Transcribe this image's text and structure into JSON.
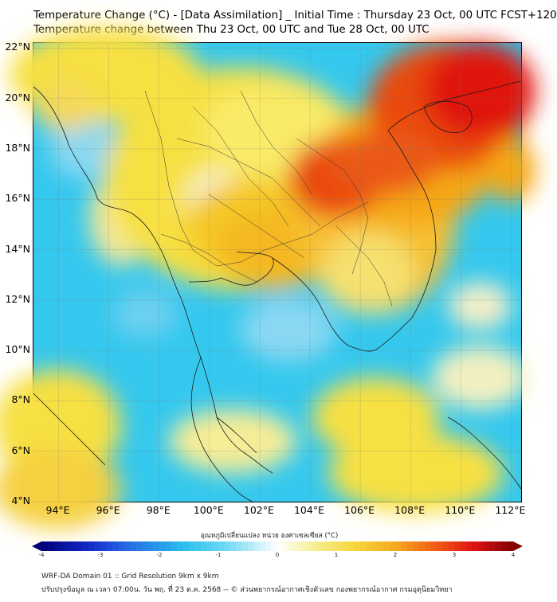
{
  "header": {
    "title_line1": "Temperature Change (°C) - [Data Assimilation] _ Initial Time : Thursday 23 Oct, 00 UTC FCST+120",
    "title_line2": "Temperature change between Thu 23 Oct, 00 UTC and Tue 28 Oct, 00 UTC"
  },
  "map": {
    "lat_labels": [
      "22°N",
      "20°N",
      "18°N",
      "16°N",
      "14°N",
      "12°N",
      "10°N",
      "8°N",
      "6°N",
      "4°N"
    ],
    "lon_labels": [
      "94°E",
      "96°E",
      "98°E",
      "100°E",
      "102°E",
      "104°E",
      "106°E",
      "108°E",
      "110°E",
      "112°E"
    ],
    "lat_range": [
      4,
      22.2
    ],
    "lon_range": [
      93,
      112.4
    ],
    "background_color": "#35c8ee",
    "field_colors": {
      "cool": "#35c8ee",
      "light_cool": "#a8e6f5",
      "neutral": "#f4f8dc",
      "warm": "#f7e042",
      "orange": "#f5a818",
      "hot": "#ea4a10",
      "very_hot": "#e0180c"
    }
  },
  "colorbar": {
    "title": "อุณหภูมิเปลี่ยนแปลง หน่วย องศาเซลเซียส (°C)",
    "ticks": [
      "-4",
      "-3",
      "-2",
      "-1",
      "0",
      "1",
      "2",
      "3",
      "4"
    ],
    "min": -4,
    "max": 4
  },
  "footer": {
    "line1": "WRF-DA Domain 01 :: Grid Resolution 9km x 9km",
    "line2": "ปรับปรุงข้อมูล ณ เวลา 07:00น. วัน พฤ. ที่ 23 ต.ค. 2568 -- © ส่วนพยากรณ์อากาศเชิงตัวเลข กองพยากรณ์อากาศ กรมอุตุนิยมวิทยา"
  }
}
